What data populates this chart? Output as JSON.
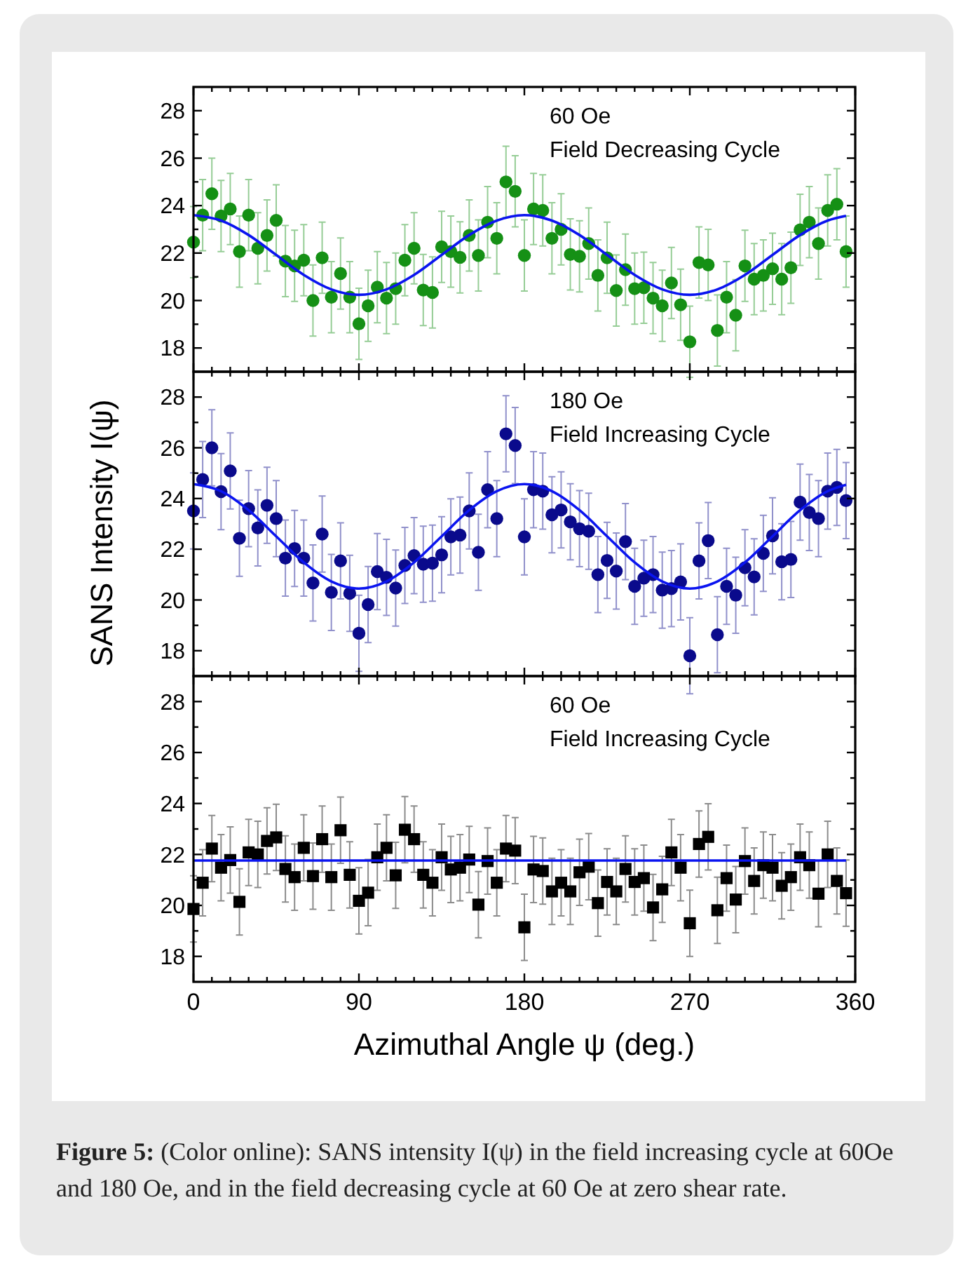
{
  "chart_data": [
    {
      "type": "scatter",
      "x": [
        0,
        5,
        10,
        15,
        20,
        25,
        30,
        35,
        40,
        45,
        50,
        55,
        60,
        65,
        70,
        75,
        80,
        85,
        90,
        95,
        100,
        105,
        110,
        115,
        120,
        125,
        130,
        135,
        140,
        145,
        150,
        155,
        160,
        165,
        170,
        175,
        180,
        185,
        190,
        195,
        200,
        205,
        210,
        215,
        220,
        225,
        230,
        235,
        240,
        245,
        250,
        255,
        260,
        265,
        270,
        275,
        280,
        285,
        290,
        295,
        300,
        305,
        310,
        315,
        320,
        325,
        330,
        335,
        340,
        345,
        350,
        355
      ],
      "xlim": [
        0,
        360
      ],
      "ylim": [
        17,
        29
      ],
      "yticks": [
        18,
        {
          "value": 19,
          "label": null
        },
        20,
        {
          "value": 21,
          "label": null
        },
        22,
        {
          "value": 23,
          "label": null
        },
        24,
        {
          "value": 25,
          "label": null
        },
        26,
        {
          "value": 27,
          "label": null
        },
        28
      ],
      "xticks": [
        0,
        {
          "value": 10,
          "label": null
        },
        {
          "value": 20,
          "label": null
        },
        {
          "value": 30,
          "label": null
        },
        {
          "value": 40,
          "label": null
        },
        {
          "value": 50,
          "label": null
        },
        {
          "value": 60,
          "label": null
        },
        {
          "value": 70,
          "label": null
        },
        {
          "value": 80,
          "label": null
        },
        90,
        {
          "value": 100,
          "label": null
        },
        {
          "value": 110,
          "label": null
        },
        {
          "value": 120,
          "label": null
        },
        {
          "value": 130,
          "label": null
        },
        {
          "value": 140,
          "label": null
        },
        {
          "value": 150,
          "label": null
        },
        {
          "value": 160,
          "label": null
        },
        {
          "value": 170,
          "label": null
        },
        180,
        {
          "value": 190,
          "label": null
        },
        {
          "value": 200,
          "label": null
        },
        {
          "value": 210,
          "label": null
        },
        {
          "value": 220,
          "label": null
        },
        {
          "value": 230,
          "label": null
        },
        {
          "value": 240,
          "label": null
        },
        {
          "value": 250,
          "label": null
        },
        {
          "value": 260,
          "label": null
        },
        270,
        {
          "value": 280,
          "label": null
        },
        {
          "value": 290,
          "label": null
        },
        {
          "value": 300,
          "label": null
        },
        {
          "value": 310,
          "label": null
        },
        {
          "value": 320,
          "label": null
        },
        {
          "value": 330,
          "label": null
        },
        {
          "value": 340,
          "label": null
        },
        {
          "value": 350,
          "label": null
        },
        360
      ],
      "tick_labels": "y",
      "grid": false,
      "annotations": [
        "60 Oe",
        "Field Decreasing Cycle"
      ],
      "series": [
        {
          "marker": "circle",
          "color": "#159015",
          "values": [
            22.46,
            23.6,
            24.5,
            23.56,
            23.86,
            22.06,
            23.6,
            22.2,
            22.74,
            23.38,
            21.66,
            21.46,
            21.7,
            20.0,
            21.8,
            20.14,
            21.14,
            20.14,
            19.02,
            19.78,
            20.56,
            20.1,
            20.5,
            21.7,
            22.2,
            20.44,
            20.34,
            22.26,
            22.06,
            21.82,
            22.74,
            21.9,
            23.3,
            22.62,
            25.0,
            24.6,
            21.9,
            23.86,
            23.8,
            22.62,
            23.0,
            21.94,
            21.86,
            22.4,
            21.06,
            21.8,
            20.42,
            21.3,
            20.5,
            20.54,
            20.1,
            19.78,
            20.74,
            19.82,
            18.26,
            21.6,
            21.5,
            18.74,
            20.14,
            19.38,
            21.46,
            20.9,
            21.06,
            21.34,
            20.9,
            21.38,
            22.98,
            23.3,
            22.4,
            23.8,
            24.06,
            22.06
          ],
          "errors": [
            1.5,
            1.5,
            1.5,
            1.5,
            1.5,
            1.5,
            1.5,
            1.5,
            1.5,
            1.5,
            1.5,
            1.5,
            1.5,
            1.5,
            1.5,
            1.5,
            1.5,
            1.5,
            1.5,
            1.5,
            1.5,
            1.5,
            1.5,
            1.5,
            1.5,
            1.5,
            1.5,
            1.5,
            1.5,
            1.5,
            1.5,
            1.5,
            1.5,
            1.5,
            1.5,
            1.5,
            1.5,
            1.5,
            1.5,
            1.5,
            1.5,
            1.5,
            1.5,
            1.5,
            1.5,
            1.5,
            1.5,
            1.5,
            1.5,
            1.5,
            1.5,
            1.5,
            1.5,
            1.5,
            1.5,
            1.5,
            1.5,
            1.5,
            1.5,
            1.5,
            1.5,
            1.5,
            1.5,
            1.5,
            1.5,
            1.5,
            1.5,
            1.5,
            1.5,
            1.5,
            1.5,
            1.5
          ]
        },
        {
          "type": "line",
          "marker": "none",
          "color": "#0a14f0",
          "x": [
            0,
            15,
            30,
            45,
            60,
            75,
            90,
            105,
            120,
            135,
            150,
            165,
            180,
            195,
            210,
            225,
            240,
            255,
            270,
            285,
            300,
            315,
            330,
            345,
            355
          ],
          "values": [
            23.6,
            23.37,
            22.76,
            21.92,
            21.08,
            20.47,
            20.24,
            20.47,
            21.08,
            21.92,
            22.76,
            23.37,
            23.6,
            23.37,
            22.76,
            21.92,
            21.08,
            20.47,
            20.24,
            20.47,
            21.08,
            21.92,
            22.76,
            23.37,
            23.57
          ]
        }
      ]
    },
    {
      "type": "scatter",
      "x": [
        0,
        5,
        10,
        15,
        20,
        25,
        30,
        35,
        40,
        45,
        50,
        55,
        60,
        65,
        70,
        75,
        80,
        85,
        90,
        95,
        100,
        105,
        110,
        115,
        120,
        125,
        130,
        135,
        140,
        145,
        150,
        155,
        160,
        165,
        170,
        175,
        180,
        185,
        190,
        195,
        200,
        205,
        210,
        215,
        220,
        225,
        230,
        235,
        240,
        245,
        250,
        255,
        260,
        265,
        270,
        275,
        280,
        285,
        290,
        295,
        300,
        305,
        310,
        315,
        320,
        325,
        330,
        335,
        340,
        345,
        350,
        355
      ],
      "xlim": [
        0,
        360
      ],
      "ylim": [
        17,
        29
      ],
      "yticks": [
        18,
        {
          "value": 19,
          "label": null
        },
        20,
        {
          "value": 21,
          "label": null
        },
        22,
        {
          "value": 23,
          "label": null
        },
        24,
        {
          "value": 25,
          "label": null
        },
        26,
        {
          "value": 27,
          "label": null
        },
        28
      ],
      "xticks": [
        0,
        {
          "value": 10,
          "label": null
        },
        {
          "value": 20,
          "label": null
        },
        {
          "value": 30,
          "label": null
        },
        {
          "value": 40,
          "label": null
        },
        {
          "value": 50,
          "label": null
        },
        {
          "value": 60,
          "label": null
        },
        {
          "value": 70,
          "label": null
        },
        {
          "value": 80,
          "label": null
        },
        90,
        {
          "value": 100,
          "label": null
        },
        {
          "value": 110,
          "label": null
        },
        {
          "value": 120,
          "label": null
        },
        {
          "value": 130,
          "label": null
        },
        {
          "value": 140,
          "label": null
        },
        {
          "value": 150,
          "label": null
        },
        {
          "value": 160,
          "label": null
        },
        {
          "value": 170,
          "label": null
        },
        180,
        {
          "value": 190,
          "label": null
        },
        {
          "value": 200,
          "label": null
        },
        {
          "value": 210,
          "label": null
        },
        {
          "value": 220,
          "label": null
        },
        {
          "value": 230,
          "label": null
        },
        {
          "value": 240,
          "label": null
        },
        {
          "value": 250,
          "label": null
        },
        {
          "value": 260,
          "label": null
        },
        270,
        {
          "value": 280,
          "label": null
        },
        {
          "value": 290,
          "label": null
        },
        {
          "value": 300,
          "label": null
        },
        {
          "value": 310,
          "label": null
        },
        {
          "value": 320,
          "label": null
        },
        {
          "value": 330,
          "label": null
        },
        {
          "value": 340,
          "label": null
        },
        {
          "value": 350,
          "label": null
        },
        360
      ],
      "tick_labels": "y",
      "grid": false,
      "ylabel": "SANS Intensity  I(ψ)",
      "annotations": [
        "180 Oe",
        "Field Increasing Cycle"
      ],
      "series": [
        {
          "marker": "circle",
          "color": "#0a0a8c",
          "values": [
            23.51,
            24.75,
            26.0,
            24.27,
            25.09,
            22.43,
            23.6,
            22.84,
            23.73,
            23.21,
            21.65,
            22.03,
            21.65,
            20.67,
            22.6,
            20.3,
            21.54,
            20.26,
            18.69,
            19.82,
            21.12,
            20.89,
            20.47,
            21.36,
            21.75,
            21.41,
            21.45,
            21.78,
            22.49,
            22.56,
            23.51,
            21.88,
            24.35,
            23.21,
            26.55,
            26.09,
            22.49,
            24.35,
            24.29,
            23.36,
            23.55,
            23.08,
            22.81,
            22.71,
            21.0,
            21.56,
            21.14,
            22.3,
            20.54,
            20.86,
            21.0,
            20.39,
            20.45,
            20.71,
            17.8,
            21.54,
            22.34,
            18.63,
            20.54,
            20.19,
            21.27,
            20.91,
            21.84,
            22.53,
            21.51,
            21.6,
            23.86,
            23.45,
            23.21,
            24.29,
            24.44,
            23.92
          ],
          "errors": [
            1.5,
            1.5,
            1.5,
            1.5,
            1.5,
            1.5,
            1.5,
            1.5,
            1.5,
            1.5,
            1.5,
            1.5,
            1.5,
            1.5,
            1.5,
            1.5,
            1.5,
            1.5,
            1.5,
            1.5,
            1.5,
            1.5,
            1.5,
            1.5,
            1.5,
            1.5,
            1.5,
            1.5,
            1.5,
            1.5,
            1.5,
            1.5,
            1.5,
            1.5,
            1.5,
            1.5,
            1.5,
            1.5,
            1.5,
            1.5,
            1.5,
            1.5,
            1.5,
            1.5,
            1.5,
            1.5,
            1.5,
            1.5,
            1.5,
            1.5,
            1.5,
            1.5,
            1.5,
            1.5,
            1.5,
            1.5,
            1.5,
            1.5,
            1.5,
            1.5,
            1.5,
            1.5,
            1.5,
            1.5,
            1.5,
            1.5,
            1.5,
            1.5,
            1.5,
            1.5,
            1.5,
            1.5
          ]
        },
        {
          "type": "line",
          "marker": "none",
          "color": "#0a14f0",
          "x": [
            0,
            15,
            30,
            45,
            60,
            75,
            90,
            105,
            120,
            135,
            150,
            165,
            180,
            195,
            210,
            225,
            240,
            255,
            270,
            285,
            300,
            315,
            330,
            345,
            355
          ],
          "values": [
            24.57,
            24.29,
            23.54,
            22.51,
            21.48,
            20.73,
            20.45,
            20.73,
            21.48,
            22.51,
            23.54,
            24.29,
            24.57,
            24.29,
            23.54,
            22.51,
            21.48,
            20.73,
            20.45,
            20.73,
            21.48,
            22.51,
            23.54,
            24.29,
            24.54
          ]
        }
      ]
    },
    {
      "type": "scatter",
      "x": [
        0,
        5,
        10,
        15,
        20,
        25,
        30,
        35,
        40,
        45,
        50,
        55,
        60,
        65,
        70,
        75,
        80,
        85,
        90,
        95,
        100,
        105,
        110,
        115,
        120,
        125,
        130,
        135,
        140,
        145,
        150,
        155,
        160,
        165,
        170,
        175,
        180,
        185,
        190,
        195,
        200,
        205,
        210,
        215,
        220,
        225,
        230,
        235,
        240,
        245,
        250,
        255,
        260,
        265,
        270,
        275,
        280,
        285,
        290,
        295,
        300,
        305,
        310,
        315,
        320,
        325,
        330,
        335,
        340,
        345,
        350,
        355
      ],
      "xlim": [
        0,
        360
      ],
      "ylim": [
        17,
        29
      ],
      "yticks": [
        18,
        {
          "value": 19,
          "label": null
        },
        20,
        {
          "value": 21,
          "label": null
        },
        22,
        {
          "value": 23,
          "label": null
        },
        24,
        {
          "value": 25,
          "label": null
        },
        26,
        {
          "value": 27,
          "label": null
        },
        28
      ],
      "xticks": [
        0,
        {
          "value": 10,
          "label": null
        },
        {
          "value": 20,
          "label": null
        },
        {
          "value": 30,
          "label": null
        },
        {
          "value": 40,
          "label": null
        },
        {
          "value": 50,
          "label": null
        },
        {
          "value": 60,
          "label": null
        },
        {
          "value": 70,
          "label": null
        },
        {
          "value": 80,
          "label": null
        },
        90,
        {
          "value": 100,
          "label": null
        },
        {
          "value": 110,
          "label": null
        },
        {
          "value": 120,
          "label": null
        },
        {
          "value": 130,
          "label": null
        },
        {
          "value": 140,
          "label": null
        },
        {
          "value": 150,
          "label": null
        },
        {
          "value": 160,
          "label": null
        },
        {
          "value": 170,
          "label": null
        },
        180,
        {
          "value": 190,
          "label": null
        },
        {
          "value": 200,
          "label": null
        },
        {
          "value": 210,
          "label": null
        },
        {
          "value": 220,
          "label": null
        },
        {
          "value": 230,
          "label": null
        },
        {
          "value": 240,
          "label": null
        },
        {
          "value": 250,
          "label": null
        },
        {
          "value": 260,
          "label": null
        },
        270,
        {
          "value": 280,
          "label": null
        },
        {
          "value": 290,
          "label": null
        },
        {
          "value": 300,
          "label": null
        },
        {
          "value": 310,
          "label": null
        },
        {
          "value": 320,
          "label": null
        },
        {
          "value": 330,
          "label": null
        },
        {
          "value": 340,
          "label": null
        },
        {
          "value": 350,
          "label": null
        },
        360
      ],
      "grid": false,
      "xlabel": "Azimuthal Angle ψ (deg.)",
      "annotations": [
        "60 Oe",
        "Field Increasing Cycle",
        "Figure 5: (Color online): SANS intensity I(ψ) in the field increasing cycle at 60Oe and 180 Oe, and in the field decreasing cycle at 60 Oe at zero shear rate."
      ],
      "series": [
        {
          "marker": "square",
          "color": "#000000",
          "values": [
            19.86,
            20.89,
            22.23,
            21.48,
            21.78,
            20.14,
            22.08,
            22.0,
            22.53,
            22.67,
            21.43,
            21.11,
            22.26,
            21.15,
            22.6,
            21.11,
            22.95,
            21.2,
            20.18,
            20.5,
            21.89,
            22.26,
            21.18,
            22.97,
            22.6,
            21.2,
            20.89,
            21.89,
            21.41,
            21.48,
            21.8,
            20.03,
            21.74,
            20.89,
            22.23,
            22.15,
            19.14,
            21.41,
            21.35,
            20.55,
            20.89,
            20.55,
            21.3,
            21.52,
            20.09,
            20.92,
            20.55,
            21.43,
            20.92,
            21.07,
            19.92,
            20.63,
            22.08,
            21.48,
            19.3,
            22.41,
            22.69,
            19.81,
            21.07,
            20.23,
            21.74,
            20.96,
            21.58,
            21.48,
            20.77,
            21.11,
            21.89,
            21.58,
            20.46,
            22.0,
            20.96,
            20.48
          ],
          "errors": [
            1.3,
            1.3,
            1.3,
            1.3,
            1.3,
            1.3,
            1.3,
            1.3,
            1.3,
            1.3,
            1.3,
            1.3,
            1.3,
            1.3,
            1.3,
            1.3,
            1.3,
            1.3,
            1.3,
            1.3,
            1.3,
            1.3,
            1.3,
            1.3,
            1.3,
            1.3,
            1.3,
            1.3,
            1.3,
            1.3,
            1.3,
            1.3,
            1.3,
            1.3,
            1.3,
            1.3,
            1.3,
            1.3,
            1.3,
            1.3,
            1.3,
            1.3,
            1.3,
            1.3,
            1.3,
            1.3,
            1.3,
            1.3,
            1.3,
            1.3,
            1.3,
            1.3,
            1.3,
            1.3,
            1.3,
            1.3,
            1.3,
            1.3,
            1.3,
            1.3,
            1.3,
            1.3,
            1.3,
            1.3,
            1.3,
            1.3,
            1.3,
            1.3,
            1.3,
            1.3,
            1.3,
            1.3
          ]
        },
        {
          "type": "line",
          "marker": "none",
          "color": "#0a14f0",
          "x": [
            0,
            355
          ],
          "values": [
            21.76,
            21.76
          ]
        }
      ]
    }
  ]
}
